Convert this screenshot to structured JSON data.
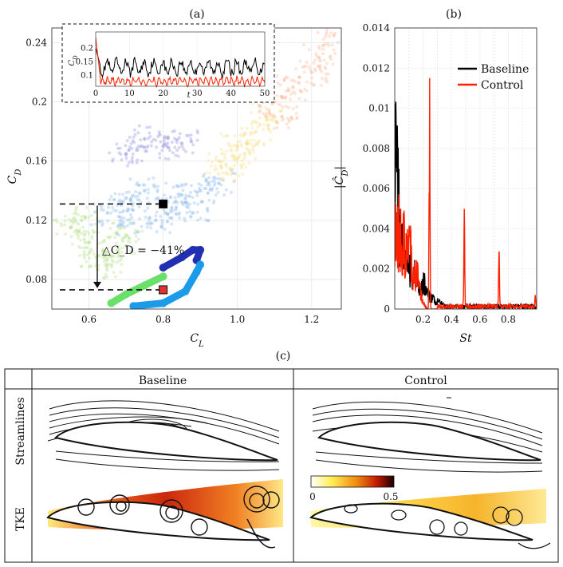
{
  "panel_labels": {
    "a": "(a)",
    "b": "(b)",
    "c": "(c)"
  },
  "chart_data": [
    {
      "id": "a",
      "type": "scatter",
      "title": "(a)",
      "xlabel": "C_L",
      "ylabel": "C_D",
      "xlim": [
        0.5,
        1.28
      ],
      "ylim": [
        0.06,
        0.25
      ],
      "xticks": [
        0.6,
        0.8,
        1.0,
        1.2
      ],
      "xtick_labels": [
        "0.6",
        "0.8",
        "1.0",
        "1.2"
      ],
      "yticks": [
        0.08,
        0.12,
        0.16,
        0.2,
        0.24
      ],
      "ytick_labels": [
        "0.08",
        "0.12",
        "0.16",
        "0.2",
        "0.24"
      ],
      "annotation": "△C_D = −41%",
      "markers": [
        {
          "name": "baseline-mean",
          "x": 0.8,
          "y": 0.131,
          "color": "#000000"
        },
        {
          "name": "control-mean",
          "x": 0.8,
          "y": 0.073,
          "color": "#e03030"
        }
      ],
      "series": [
        {
          "name": "baseline-cloud-core",
          "color": "#8ab8ee",
          "points": [
            [
              0.65,
              0.125
            ],
            [
              0.7,
              0.135
            ],
            [
              0.75,
              0.14
            ],
            [
              0.8,
              0.13
            ],
            [
              0.85,
              0.137
            ],
            [
              0.9,
              0.14
            ],
            [
              0.95,
              0.145
            ],
            [
              0.78,
              0.12
            ],
            [
              0.72,
              0.118
            ],
            [
              0.88,
              0.125
            ]
          ]
        },
        {
          "name": "baseline-cloud-low",
          "color": "#b6e08a",
          "points": [
            [
              0.55,
              0.115
            ],
            [
              0.6,
              0.105
            ],
            [
              0.62,
              0.095
            ],
            [
              0.65,
              0.09
            ],
            [
              0.58,
              0.12
            ],
            [
              0.68,
              0.1
            ],
            [
              0.7,
              0.11
            ]
          ]
        },
        {
          "name": "baseline-cloud-upper",
          "color": "#f5e08a",
          "points": [
            [
              0.95,
              0.16
            ],
            [
              1.0,
              0.17
            ],
            [
              1.05,
              0.18
            ],
            [
              1.02,
              0.165
            ],
            [
              0.98,
              0.155
            ],
            [
              1.08,
              0.19
            ]
          ]
        },
        {
          "name": "baseline-cloud-top",
          "color": "#f8b898",
          "points": [
            [
              1.1,
              0.2
            ],
            [
              1.15,
              0.21
            ],
            [
              1.2,
              0.22
            ],
            [
              1.22,
              0.23
            ],
            [
              1.26,
              0.245
            ],
            [
              1.12,
              0.19
            ]
          ]
        },
        {
          "name": "baseline-cloud-purple",
          "color": "#9090e0",
          "points": [
            [
              0.75,
              0.175
            ],
            [
              0.8,
              0.17
            ],
            [
              0.7,
              0.165
            ],
            [
              0.85,
              0.172
            ]
          ]
        },
        {
          "name": "control-trajectory-dark",
          "color": "#2030b0",
          "points": [
            [
              0.8,
              0.088
            ],
            [
              0.85,
              0.095
            ],
            [
              0.88,
              0.1
            ],
            [
              0.9,
              0.1
            ],
            [
              0.89,
              0.093
            ]
          ]
        },
        {
          "name": "control-trajectory-cyan",
          "color": "#1c9ce8",
          "points": [
            [
              0.72,
              0.062
            ],
            [
              0.8,
              0.064
            ],
            [
              0.86,
              0.072
            ],
            [
              0.89,
              0.085
            ],
            [
              0.9,
              0.09
            ]
          ]
        },
        {
          "name": "control-trajectory-green",
          "color": "#6adf6a",
          "points": [
            [
              0.66,
              0.064
            ],
            [
              0.7,
              0.07
            ],
            [
              0.75,
              0.076
            ],
            [
              0.8,
              0.082
            ]
          ]
        }
      ],
      "inset": {
        "type": "line",
        "xlabel": "t",
        "ylabel": "C_D",
        "xlim": [
          0,
          50
        ],
        "ylim": [
          0.06,
          0.26
        ],
        "xticks": [
          0,
          10,
          20,
          30,
          40,
          50
        ],
        "xtick_labels": [
          "0",
          "10",
          "20",
          "30",
          "40",
          "50"
        ],
        "yticks": [
          0.1,
          0.15,
          0.2
        ],
        "ytick_labels": [
          "0.1",
          "0.15",
          "0.2"
        ],
        "series": [
          {
            "name": "Baseline",
            "color": "#000000",
            "mean": 0.13,
            "amp": 0.022,
            "start": 0.2
          },
          {
            "name": "Control",
            "color": "#ff2000",
            "mean": 0.078,
            "amp": 0.012,
            "start": 0.24
          }
        ]
      }
    },
    {
      "id": "b",
      "type": "line",
      "title": "(b)",
      "xlabel": "St",
      "ylabel": "|Ĉ_D|",
      "xlim": [
        0,
        1.0
      ],
      "ylim": [
        0,
        0.014
      ],
      "xticks": [
        0.2,
        0.4,
        0.6,
        0.8
      ],
      "xtick_labels": [
        "0.2",
        "0.4",
        "0.6",
        "0.8"
      ],
      "yticks": [
        0,
        0.002,
        0.004,
        0.006,
        0.008,
        0.01,
        0.012,
        0.014
      ],
      "ytick_labels": [
        "0",
        "0.002",
        "0.004",
        "0.006",
        "0.008",
        "0.01",
        "0.012",
        "0.014"
      ],
      "legend": [
        "Baseline",
        "Control"
      ],
      "series": [
        {
          "name": "Baseline",
          "color": "#000000",
          "peaks": [
            [
              0.005,
              0.008
            ],
            [
              0.02,
              0.005
            ],
            [
              0.05,
              0.0035
            ],
            [
              0.1,
              0.0028
            ],
            [
              0.15,
              0.002
            ],
            [
              0.2,
              0.0015
            ],
            [
              0.25,
              0.0008
            ],
            [
              0.3,
              0.0003
            ]
          ]
        },
        {
          "name": "Control",
          "color": "#ff2000",
          "peaks": [
            [
              0.01,
              0.0052
            ],
            [
              0.03,
              0.0045
            ],
            [
              0.06,
              0.004
            ],
            [
              0.1,
              0.0035
            ],
            [
              0.15,
              0.002
            ],
            [
              0.245,
              0.0128
            ],
            [
              0.49,
              0.0048
            ],
            [
              0.735,
              0.0029
            ],
            [
              0.99,
              0.0005
            ]
          ]
        }
      ]
    }
  ],
  "table": {
    "col_headers": [
      "Baseline",
      "Control"
    ],
    "row_headers": [
      "Streamlines",
      "TKE"
    ],
    "colorbar": {
      "min_label": "0",
      "max_label": "0.5"
    }
  }
}
